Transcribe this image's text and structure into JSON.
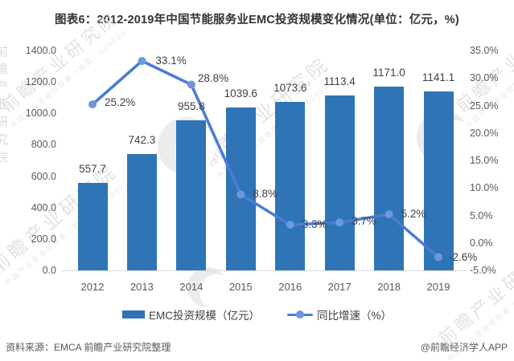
{
  "title": "图表6：2012-2019年中国节能服务业EMC投资规模变化情况(单位：亿元，%)",
  "colors": {
    "bar": "#2E74B7",
    "line": "#4A7DD6",
    "marker": "#6E96DE",
    "axis_text": "#595959",
    "label_text": "#404040",
    "axis_line": "#D9D9D9",
    "watermark": "#DCDCDC"
  },
  "chart_data": {
    "type": "bar+line",
    "categories": [
      "2012",
      "2013",
      "2014",
      "2015",
      "2016",
      "2017",
      "2018",
      "2019"
    ],
    "series": [
      {
        "name": "EMC投资规模（亿元）",
        "type": "bar",
        "axis": "left",
        "values": [
          557.7,
          742.3,
          955.8,
          1039.6,
          1073.6,
          1113.4,
          1171.0,
          1141.1
        ],
        "labels": [
          "557.7",
          "742.3",
          "955.8",
          "1039.6",
          "1073.6",
          "1113.4",
          "1171.0",
          "1141.1"
        ]
      },
      {
        "name": "同比增速（%）",
        "type": "line",
        "axis": "right",
        "values": [
          25.2,
          33.1,
          28.8,
          8.8,
          3.3,
          3.7,
          5.2,
          -2.6
        ],
        "labels": [
          "25.2%",
          "33.1%",
          "28.8%",
          "8.8%",
          "3.3%",
          "3.7%",
          "5.2%",
          "-2.6%"
        ]
      }
    ],
    "left_axis": {
      "min": 0,
      "max": 1400,
      "ticks": [
        "1400.0",
        "1200.0",
        "1000.0",
        "800.0",
        "600.0",
        "400.0",
        "200.0",
        "0.0"
      ]
    },
    "right_axis": {
      "min": -5,
      "max": 35,
      "ticks": [
        "35.0%",
        "30.0%",
        "25.0%",
        "20.0%",
        "15.0%",
        "10.0%",
        "5.0%",
        "0.0%",
        "-5.0%"
      ]
    },
    "grid": false,
    "legend_position": "bottom"
  },
  "legend": {
    "bar_label": "EMC投资规模（亿元）",
    "line_label": "同比增速（%）"
  },
  "footer": {
    "source": "资料来源：EMCA 前瞻产业研究院整理",
    "credit": "@前瞻经济学人APP"
  },
  "watermark": {
    "text": "前瞻产业研究院",
    "subtext": "中国产业咨询领导者（股票：839599）"
  }
}
